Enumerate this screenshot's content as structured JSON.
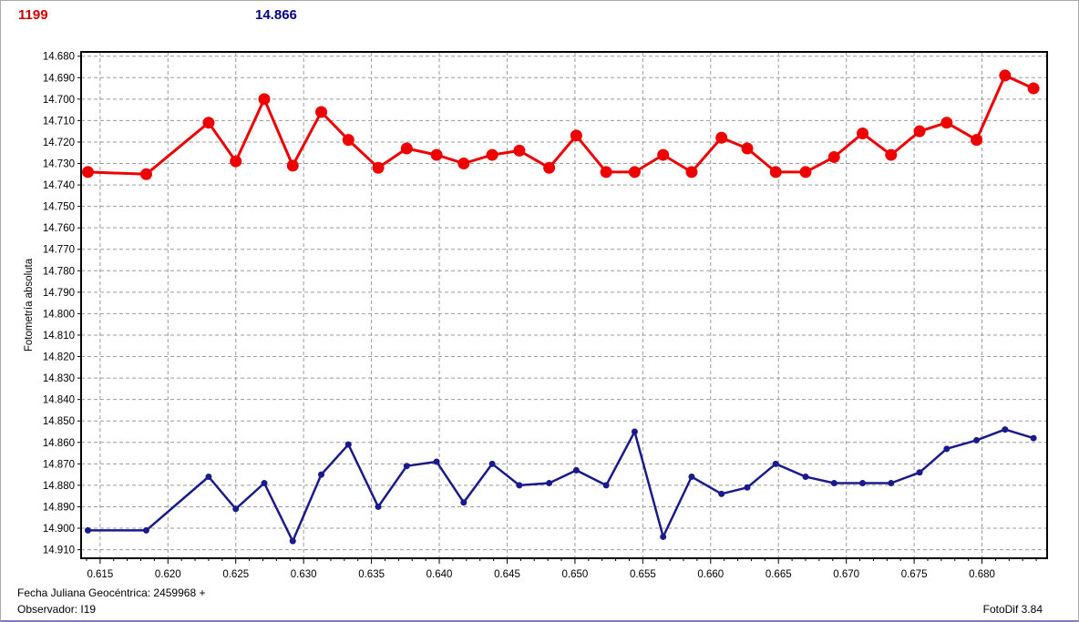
{
  "header": {
    "object_number": "1199",
    "mean_value": "14.866"
  },
  "footer": {
    "line1": "Fecha Juliana Geocéntrica: 2459968 +",
    "line2": "Observador: I19",
    "version": "FotoDif 3.84"
  },
  "colors": {
    "header_object": "#cc0000",
    "header_mean": "#00008b",
    "red_series": "#ee0000",
    "blue_series": "#1a1a8c",
    "grid": "#9b9b9b",
    "frame": "#000000",
    "window_border": "#a9a9a9",
    "window_border_bottom": "#7d7dbe"
  },
  "chart_data": {
    "type": "line",
    "title": "",
    "xlabel": "",
    "ylabel": "Fotometría absoluta",
    "grid": true,
    "y_axis_inverted": true,
    "xlim": [
      0.6136,
      0.6848
    ],
    "ylim": [
      14.678,
      14.914
    ],
    "x_ticks": [
      "0.615",
      "0.620",
      "0.625",
      "0.630",
      "0.635",
      "0.640",
      "0.645",
      "0.650",
      "0.655",
      "0.660",
      "0.665",
      "0.670",
      "0.675",
      "0.680"
    ],
    "x_minor_tick_step": 0.001,
    "y_ticks": [
      "14.680",
      "14.690",
      "14.700",
      "14.710",
      "14.720",
      "14.730",
      "14.740",
      "14.750",
      "14.760",
      "14.770",
      "14.780",
      "14.790",
      "14.800",
      "14.810",
      "14.820",
      "14.830",
      "14.840",
      "14.850",
      "14.860",
      "14.870",
      "14.880",
      "14.890",
      "14.900",
      "14.910"
    ],
    "x": [
      0.6141,
      0.6184,
      0.623,
      0.625,
      0.6271,
      0.6292,
      0.6313,
      0.6333,
      0.6355,
      0.6376,
      0.6398,
      0.6418,
      0.6439,
      0.6459,
      0.6481,
      0.6501,
      0.6523,
      0.6544,
      0.6565,
      0.6586,
      0.6608,
      0.6627,
      0.6648,
      0.667,
      0.6691,
      0.6712,
      0.6733,
      0.6754,
      0.6774,
      0.6796,
      0.6817,
      0.6838
    ],
    "series": [
      {
        "name": "red-series",
        "color": "#ee0000",
        "marker": "circle-large",
        "values": [
          14.734,
          14.735,
          14.711,
          14.729,
          14.7,
          14.731,
          14.706,
          14.719,
          14.732,
          14.723,
          14.726,
          14.73,
          14.726,
          14.724,
          14.732,
          14.717,
          14.734,
          14.734,
          14.726,
          14.734,
          14.718,
          14.723,
          14.734,
          14.734,
          14.727,
          14.716,
          14.726,
          14.715,
          14.711,
          14.719,
          14.689,
          14.695
        ]
      },
      {
        "name": "blue-series",
        "color": "#1a1a8c",
        "marker": "circle-small",
        "values": [
          14.901,
          14.901,
          14.876,
          14.891,
          14.879,
          14.906,
          14.875,
          14.861,
          14.89,
          14.871,
          14.869,
          14.888,
          14.87,
          14.88,
          14.879,
          14.873,
          14.88,
          14.855,
          14.904,
          14.876,
          14.884,
          14.881,
          14.87,
          14.876,
          14.879,
          14.879,
          14.879,
          14.874,
          14.863,
          14.859,
          14.854,
          14.858
        ]
      }
    ]
  }
}
